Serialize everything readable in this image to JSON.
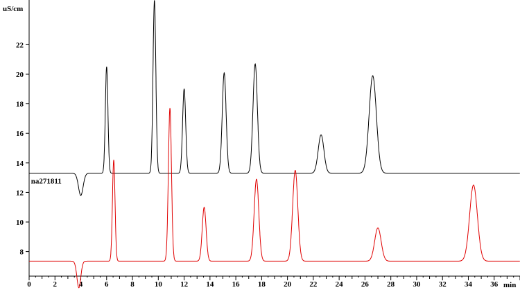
{
  "chart_data": {
    "type": "line",
    "ylabel": "uS/cm",
    "xlabel": "min",
    "xlim": [
      0,
      38
    ],
    "ylim": [
      6.5,
      25
    ],
    "grid": false,
    "xticks": [
      0,
      2,
      4,
      6,
      8,
      10,
      12,
      14,
      16,
      18,
      20,
      22,
      24,
      26,
      28,
      30,
      32,
      34,
      36
    ],
    "xtick_labels": [
      "0",
      "2",
      "4",
      "6",
      "8",
      "10",
      "12",
      "14",
      "16",
      "18",
      "20",
      "22",
      "24",
      "26",
      "28",
      "30",
      "32",
      "34",
      "36"
    ],
    "yticks": [
      8,
      10,
      12,
      14,
      16,
      18,
      20,
      22
    ],
    "ytick_labels": [
      "8",
      "10",
      "12",
      "14",
      "16",
      "18",
      "20",
      "22"
    ],
    "annotations": [
      {
        "text": "na271811",
        "x": 0.15,
        "y": 12.8
      }
    ],
    "series": [
      {
        "color": "#000000",
        "baseline": 13.3,
        "dip": {
          "x": 4.0,
          "depth": 1.5,
          "width": 0.18
        },
        "peaks": [
          {
            "x": 6.0,
            "height": 20.5,
            "width": 0.1
          },
          {
            "x": 9.7,
            "height": 25.0,
            "width": 0.11
          },
          {
            "x": 12.0,
            "height": 19.0,
            "width": 0.12
          },
          {
            "x": 15.1,
            "height": 20.1,
            "width": 0.15
          },
          {
            "x": 17.5,
            "height": 20.7,
            "width": 0.17
          },
          {
            "x": 22.6,
            "height": 15.9,
            "width": 0.22
          },
          {
            "x": 26.6,
            "height": 19.9,
            "width": 0.28
          }
        ]
      },
      {
        "color": "#e00000",
        "baseline": 7.35,
        "dip": {
          "x": 3.85,
          "depth": 1.8,
          "width": 0.15
        },
        "peaks": [
          {
            "x": 6.55,
            "height": 14.2,
            "width": 0.1
          },
          {
            "x": 10.9,
            "height": 17.7,
            "width": 0.12
          },
          {
            "x": 13.55,
            "height": 11.0,
            "width": 0.15
          },
          {
            "x": 17.6,
            "height": 12.9,
            "width": 0.18
          },
          {
            "x": 20.6,
            "height": 13.5,
            "width": 0.2
          },
          {
            "x": 27.0,
            "height": 9.6,
            "width": 0.25
          },
          {
            "x": 34.4,
            "height": 12.5,
            "width": 0.3
          }
        ]
      }
    ]
  }
}
